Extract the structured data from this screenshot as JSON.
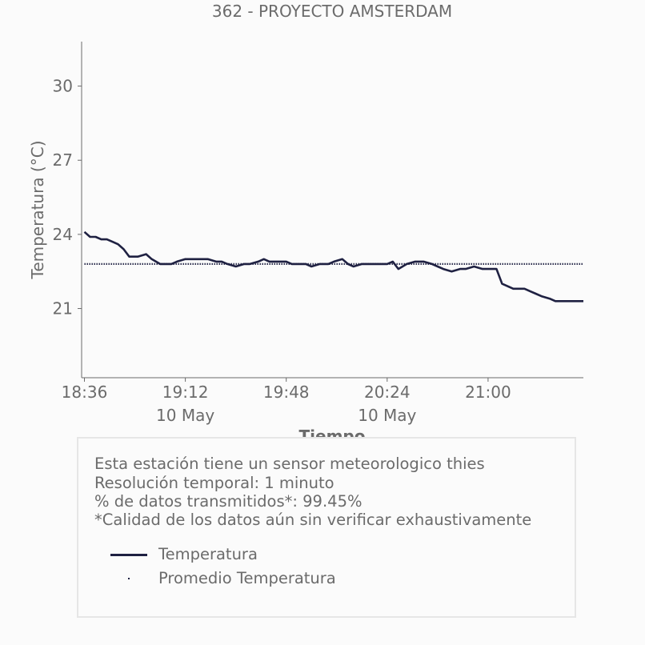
{
  "chart_data": {
    "type": "line",
    "title": "362 - PROYECTO AMSTERDAM",
    "xlabel": "Tiempo",
    "ylabel": "Temperatura (°C)",
    "ylim": [
      18.2,
      31.8
    ],
    "xlim_minutes_from_1836": [
      -1,
      178
    ],
    "yticks": [
      21,
      24,
      27,
      30
    ],
    "xticks": [
      {
        "time": "18:36",
        "date": ""
      },
      {
        "time": "19:12",
        "date": "10 May"
      },
      {
        "time": "19:48",
        "date": ""
      },
      {
        "time": "20:24",
        "date": "10 May"
      },
      {
        "time": "21:00",
        "date": ""
      }
    ],
    "grid": false,
    "series": [
      {
        "name": "Temperatura",
        "style": "line",
        "color": "#1f2142",
        "x": [
          "18:36",
          "18:38",
          "18:40",
          "18:42",
          "18:44",
          "18:46",
          "18:48",
          "18:50",
          "18:52",
          "18:55",
          "18:58",
          "19:00",
          "19:03",
          "19:05",
          "19:07",
          "19:09",
          "19:12",
          "19:15",
          "19:18",
          "19:20",
          "19:23",
          "19:25",
          "19:27",
          "19:30",
          "19:33",
          "19:35",
          "19:38",
          "19:40",
          "19:42",
          "19:45",
          "19:48",
          "19:50",
          "19:52",
          "19:55",
          "19:57",
          "20:00",
          "20:03",
          "20:05",
          "20:08",
          "20:10",
          "20:12",
          "20:15",
          "20:18",
          "20:20",
          "20:22",
          "20:24",
          "20:26",
          "20:28",
          "20:31",
          "20:34",
          "20:37",
          "20:40",
          "20:42",
          "20:44",
          "20:47",
          "20:50",
          "20:52",
          "20:55",
          "20:58",
          "21:00",
          "21:03",
          "21:05",
          "21:07",
          "21:09",
          "21:11",
          "21:13",
          "21:15",
          "21:17",
          "21:19",
          "21:22",
          "21:24",
          "21:26",
          "21:28",
          "21:30",
          "21:32",
          "21:34"
        ],
        "values": [
          24.1,
          23.9,
          23.9,
          23.8,
          23.8,
          23.7,
          23.6,
          23.4,
          23.1,
          23.1,
          23.2,
          23.0,
          22.8,
          22.8,
          22.8,
          22.9,
          23.0,
          23.0,
          23.0,
          23.0,
          22.9,
          22.9,
          22.8,
          22.7,
          22.8,
          22.8,
          22.9,
          23.0,
          22.9,
          22.9,
          22.9,
          22.8,
          22.8,
          22.8,
          22.7,
          22.8,
          22.8,
          22.9,
          23.0,
          22.8,
          22.7,
          22.8,
          22.8,
          22.8,
          22.8,
          22.8,
          22.9,
          22.6,
          22.8,
          22.9,
          22.9,
          22.8,
          22.7,
          22.6,
          22.5,
          22.6,
          22.6,
          22.7,
          22.6,
          22.6,
          22.6,
          22.0,
          21.9,
          21.8,
          21.8,
          21.8,
          21.7,
          21.6,
          21.5,
          21.4,
          21.3,
          21.3,
          21.3,
          21.3,
          21.3,
          21.3
        ]
      },
      {
        "name": "Promedio Temperatura",
        "style": "dotted",
        "color": "#1f2142",
        "x": [
          "18:36",
          "21:34"
        ],
        "values": [
          22.8,
          22.8
        ]
      }
    ]
  },
  "info": {
    "line1": "Esta estación tiene un sensor meteorologico thies",
    "line2": "Resolución temporal: 1 minuto",
    "line3": "% de datos transmitidos*: 99.45%",
    "line4": "*Calidad de los datos aún sin verificar exhaustivamente"
  },
  "legend": [
    {
      "label": "Temperatura",
      "icon": "line-swatch"
    },
    {
      "label": "Promedio Temperatura",
      "icon": "dot-swatch"
    }
  ]
}
